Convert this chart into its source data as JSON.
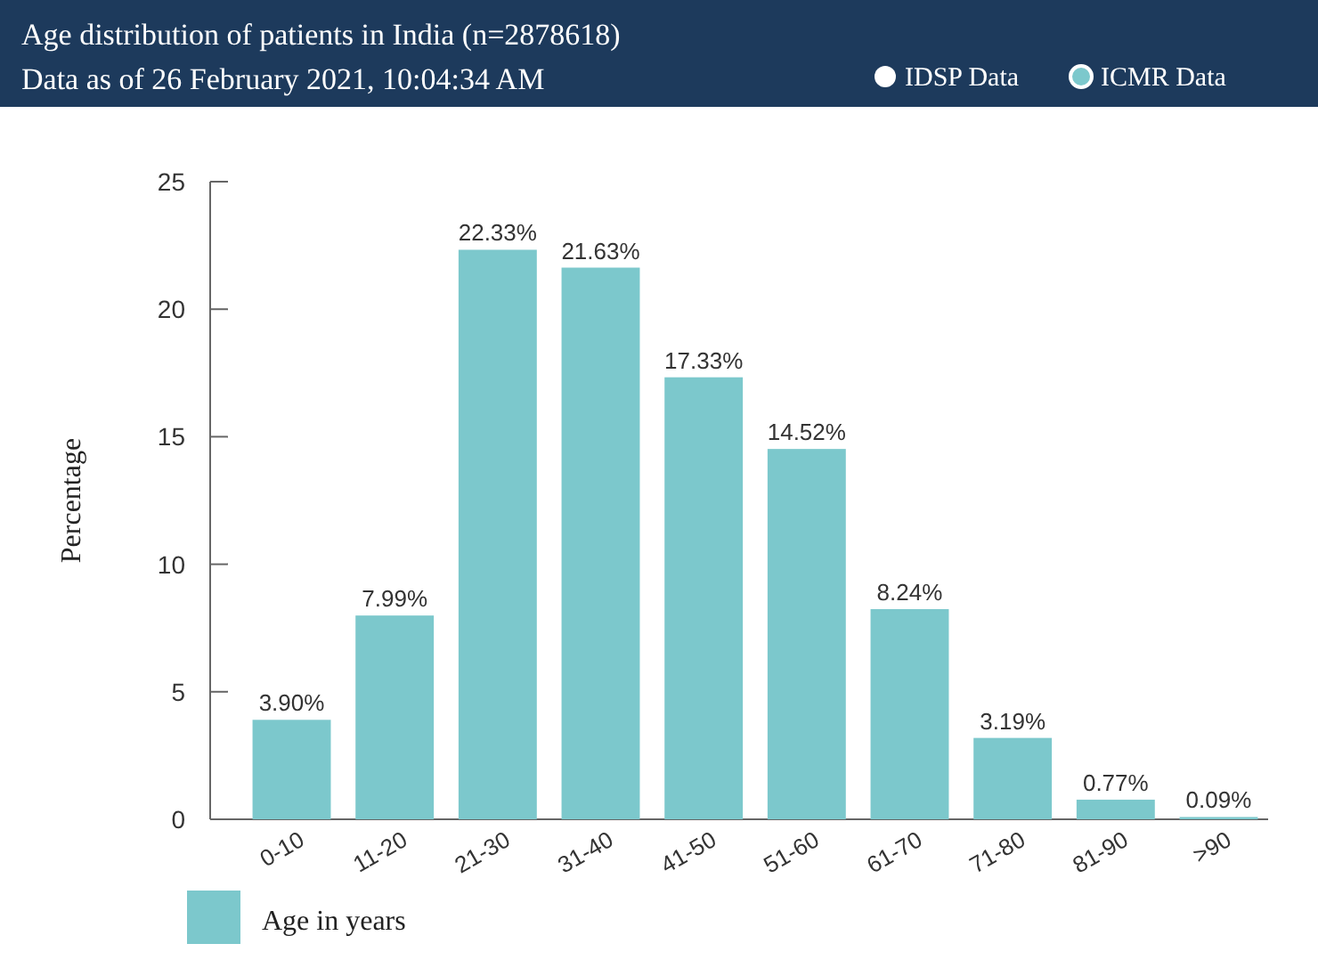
{
  "chart_data": {
    "type": "bar",
    "title": "Age distribution of patients in India (n=2878618)",
    "subtitle": "Data as of 26 February 2021, 10:04:34 AM",
    "annotations": [
      "IDSP Data",
      "ICMR Data"
    ],
    "categories": [
      "0-10",
      "11-20",
      "21-30",
      "31-40",
      "41-50",
      "51-60",
      "61-70",
      "71-80",
      "81-90",
      ">90"
    ],
    "series": [
      {
        "name": "Age in years",
        "color": "#7cc8cc",
        "values": [
          3.9,
          7.99,
          22.33,
          21.63,
          17.33,
          14.52,
          8.24,
          3.19,
          0.77,
          0.09
        ],
        "value_labels": [
          "3.90%",
          "7.99%",
          "22.33%",
          "21.63%",
          "17.33%",
          "14.52%",
          "8.24%",
          "3.19%",
          "0.77%",
          "0.09%"
        ]
      }
    ],
    "ylabel": "Percentage",
    "ylim": [
      0,
      25
    ],
    "yticks": [
      0,
      5,
      10,
      15,
      20,
      25
    ],
    "legend": "bottom left"
  }
}
